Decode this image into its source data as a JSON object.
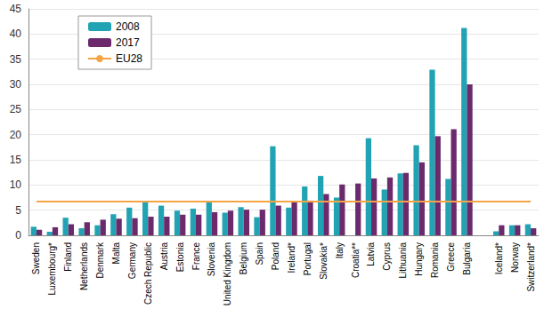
{
  "chart_data": {
    "type": "bar",
    "categories": [
      "Sweden",
      "Luxembourg*",
      "Finland",
      "Netherlands",
      "Denmark",
      "Malta",
      "Germany",
      "Czech Republic",
      "Austria",
      "Estonia",
      "France",
      "Slovenia",
      "United Kingdom",
      "Belgium",
      "Spain",
      "Poland",
      "Ireland*",
      "Portugal",
      "Slovakia*",
      "Italy",
      "Croatia**",
      "Latvia",
      "Cyprus",
      "Lithuania",
      "Hungary",
      "Romania",
      "Greece",
      "Bulgaria",
      null,
      "Iceland*",
      "Norway",
      "Switzerland*"
    ],
    "series": [
      {
        "name": "2008",
        "type": "bar",
        "color": "#21a3b4",
        "values": [
          1.7,
          0.7,
          3.5,
          1.4,
          2.0,
          4.2,
          5.5,
          6.8,
          5.9,
          4.9,
          5.3,
          6.7,
          4.5,
          5.6,
          3.6,
          17.7,
          5.5,
          9.7,
          11.8,
          7.5,
          null,
          19.3,
          9.1,
          12.3,
          17.9,
          32.9,
          11.2,
          41.2,
          null,
          0.8,
          2.0,
          2.2
        ]
      },
      {
        "name": "2017",
        "type": "bar",
        "color": "#6a2a6c",
        "values": [
          1.1,
          1.6,
          2.2,
          2.6,
          3.1,
          3.3,
          3.4,
          3.7,
          3.7,
          4.1,
          4.1,
          4.6,
          4.9,
          5.1,
          5.1,
          5.9,
          6.7,
          6.9,
          8.2,
          10.1,
          10.3,
          11.3,
          11.5,
          12.4,
          14.5,
          19.7,
          21.1,
          30.0,
          null,
          2.0,
          2.0,
          1.4
        ]
      },
      {
        "name": "EU28",
        "type": "line",
        "color": "#f5a445",
        "marker": "none",
        "values": [
          6.7,
          6.7,
          6.7,
          6.7,
          6.7,
          6.7,
          6.7,
          6.7,
          6.7,
          6.7,
          6.7,
          6.7,
          6.7,
          6.7,
          6.7,
          6.7,
          6.7,
          6.7,
          6.7,
          6.7,
          6.7,
          6.7,
          6.7,
          6.7,
          6.7,
          6.7,
          6.7,
          6.7,
          6.7,
          6.7,
          6.7,
          6.7
        ]
      }
    ],
    "ylim": [
      0,
      45
    ],
    "yticks": [
      0,
      5,
      10,
      15,
      20,
      25,
      30,
      35,
      40,
      45
    ],
    "grid": true,
    "legend": "upper left"
  }
}
